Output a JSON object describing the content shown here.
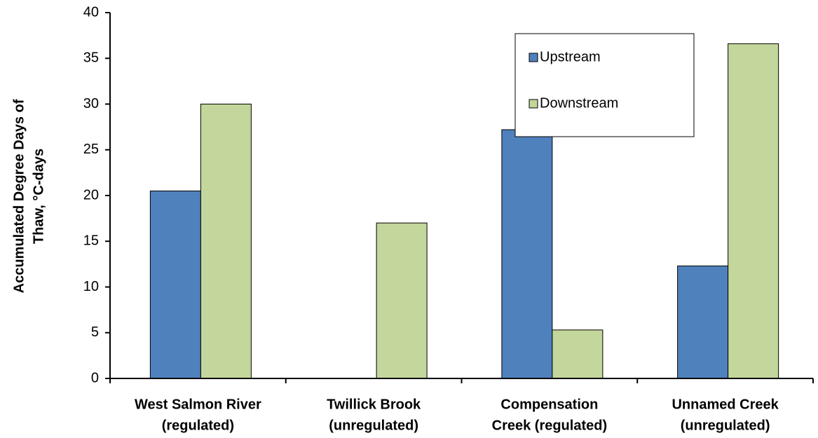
{
  "chart_data": {
    "type": "bar",
    "y_label": [
      "Accumulated Degree Days of",
      "Thaw, °C-days"
    ],
    "categories": [
      [
        "West Salmon River",
        "(regulated)"
      ],
      [
        "Twillick Brook",
        "(unregulated)"
      ],
      [
        "Compensation",
        "Creek (regulated)"
      ],
      [
        "Unnamed Creek",
        "(unregulated)"
      ]
    ],
    "series": [
      {
        "name": "Upstream",
        "color": "#4f81bd",
        "values": [
          20.5,
          null,
          27.2,
          12.3
        ]
      },
      {
        "name": "Downstream",
        "color": "#c3d69b",
        "values": [
          30,
          17,
          5.3,
          36.6
        ]
      }
    ],
    "ylim": [
      0,
      40
    ],
    "yticks": [
      0,
      5,
      10,
      15,
      20,
      25,
      30,
      35,
      40
    ],
    "grid": false,
    "legend": "upper right"
  }
}
